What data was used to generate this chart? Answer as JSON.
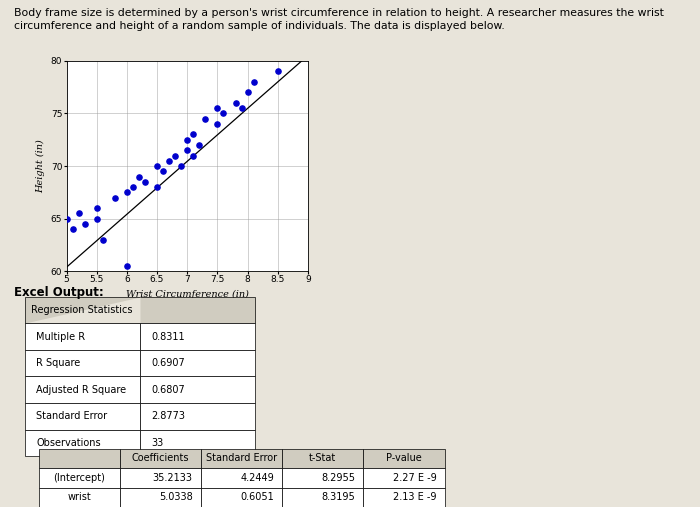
{
  "title_text": "Body frame size is determined by a person's wrist circumference in relation to height. A researcher measures the wrist\ncircumference and height of a random sample of individuals. The data is displayed below.",
  "scatter_x": [
    5.0,
    5.1,
    5.2,
    5.3,
    5.5,
    5.5,
    5.6,
    5.8,
    6.0,
    6.0,
    6.1,
    6.2,
    6.3,
    6.5,
    6.5,
    6.6,
    6.7,
    6.8,
    6.9,
    7.0,
    7.0,
    7.1,
    7.1,
    7.2,
    7.3,
    7.5,
    7.5,
    7.6,
    7.8,
    7.9,
    8.0,
    8.1,
    8.5
  ],
  "scatter_y": [
    65.0,
    64.0,
    65.5,
    64.5,
    66.0,
    65.0,
    63.0,
    67.0,
    60.5,
    67.5,
    68.0,
    69.0,
    68.5,
    68.0,
    70.0,
    69.5,
    70.5,
    71.0,
    70.0,
    71.5,
    72.5,
    71.0,
    73.0,
    72.0,
    74.5,
    74.0,
    75.5,
    75.0,
    76.0,
    75.5,
    77.0,
    78.0,
    79.0
  ],
  "dot_color": "#0000CD",
  "xlabel": "Wrist Circumference (in)",
  "ylabel": "Height (in)",
  "xlim": [
    5.0,
    9.0
  ],
  "ylim": [
    60,
    80
  ],
  "xticks": [
    5,
    5.5,
    6,
    6.5,
    7,
    7.5,
    8,
    8.5,
    9
  ],
  "yticks": [
    60,
    65,
    70,
    75,
    80
  ],
  "regression_intercept": 35.2133,
  "regression_slope": 5.0338,
  "bg_color": "#e8e4da",
  "excel_label": "Excel Output:",
  "reg_stats_header": "Regression Statistics",
  "reg_stats_rows": [
    [
      "Multiple R",
      "0.8311"
    ],
    [
      "R Square",
      "0.6907"
    ],
    [
      "Adjusted R Square",
      "0.6807"
    ],
    [
      "Standard Error",
      "2.8773"
    ],
    [
      "Observations",
      "33"
    ]
  ],
  "coeff_header": [
    "",
    "Coefficients",
    "Standard Error",
    "t-Stat",
    "P-value"
  ],
  "coeff_rows": [
    [
      "(Intercept)",
      "35.2133",
      "4.2449",
      "8.2955",
      "2.27 E -9"
    ],
    [
      "wrist",
      "5.0338",
      "0.6051",
      "8.3195",
      "2.13 E -9"
    ]
  ]
}
